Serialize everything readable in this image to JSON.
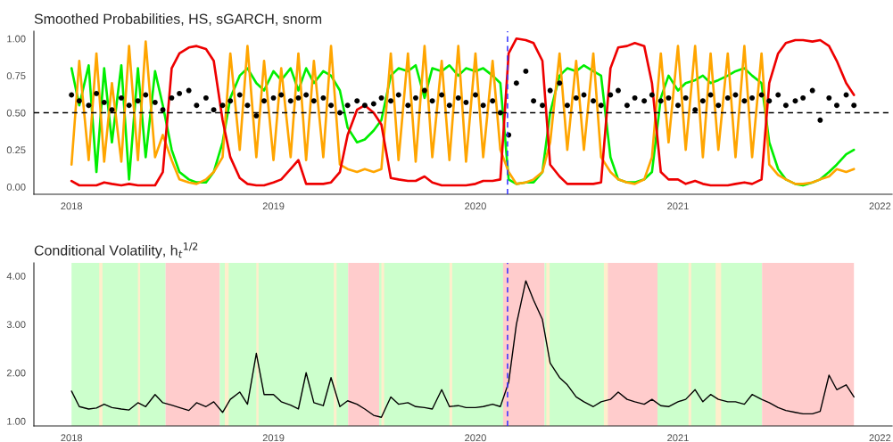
{
  "chart_data": [
    {
      "type": "line",
      "title": "Smoothed Probabilities, HS, sGARCH, snorm",
      "x": [
        "2018-01-01",
        "2018-01-15",
        "2018-02-01",
        "2018-02-15",
        "2018-03-01",
        "2018-03-15",
        "2018-04-01",
        "2018-04-15",
        "2018-05-01",
        "2018-05-15",
        "2018-06-01",
        "2018-06-15",
        "2018-07-01",
        "2018-07-15",
        "2018-08-01",
        "2018-08-15",
        "2018-09-01",
        "2018-09-15",
        "2018-10-01",
        "2018-10-15",
        "2018-11-01",
        "2018-11-15",
        "2018-12-01",
        "2018-12-15",
        "2019-01-01",
        "2019-01-15",
        "2019-02-01",
        "2019-02-15",
        "2019-03-01",
        "2019-03-15",
        "2019-04-01",
        "2019-04-15",
        "2019-05-01",
        "2019-05-15",
        "2019-06-01",
        "2019-06-15",
        "2019-07-01",
        "2019-07-15",
        "2019-08-01",
        "2019-08-15",
        "2019-09-01",
        "2019-09-15",
        "2019-10-01",
        "2019-10-15",
        "2019-11-01",
        "2019-11-15",
        "2019-12-01",
        "2019-12-15",
        "2020-01-01",
        "2020-01-15",
        "2020-02-01",
        "2020-02-15",
        "2020-03-01",
        "2020-03-15",
        "2020-04-01",
        "2020-04-15",
        "2020-05-01",
        "2020-05-15",
        "2020-06-01",
        "2020-06-15",
        "2020-07-01",
        "2020-07-15",
        "2020-08-01",
        "2020-08-15",
        "2020-09-01",
        "2020-09-15",
        "2020-10-01",
        "2020-10-15",
        "2020-11-01",
        "2020-11-15",
        "2020-12-01",
        "2020-12-15",
        "2021-01-01",
        "2021-01-15",
        "2021-02-01",
        "2021-02-15",
        "2021-03-01",
        "2021-03-15",
        "2021-04-01",
        "2021-04-15",
        "2021-05-01",
        "2021-05-15",
        "2021-06-01",
        "2021-06-15",
        "2021-07-01",
        "2021-07-15",
        "2021-08-01",
        "2021-08-15",
        "2021-09-01",
        "2021-09-15",
        "2021-10-01",
        "2021-10-15",
        "2021-11-01",
        "2021-11-15"
      ],
      "series": [
        {
          "color": "#00ee00",
          "values": [
            0.8,
            0.55,
            0.82,
            0.1,
            0.8,
            0.3,
            0.82,
            0.05,
            0.8,
            0.2,
            0.78,
            0.55,
            0.25,
            0.1,
            0.05,
            0.03,
            0.03,
            0.1,
            0.3,
            0.6,
            0.75,
            0.8,
            0.7,
            0.65,
            0.78,
            0.72,
            0.8,
            0.65,
            0.8,
            0.7,
            0.78,
            0.75,
            0.65,
            0.4,
            0.3,
            0.32,
            0.38,
            0.45,
            0.75,
            0.8,
            0.78,
            0.82,
            0.6,
            0.8,
            0.78,
            0.82,
            0.75,
            0.8,
            0.78,
            0.8,
            0.75,
            0.7,
            0.05,
            0.02,
            0.03,
            0.03,
            0.1,
            0.5,
            0.75,
            0.8,
            0.78,
            0.82,
            0.78,
            0.75,
            0.2,
            0.05,
            0.03,
            0.03,
            0.05,
            0.1,
            0.6,
            0.75,
            0.65,
            0.7,
            0.72,
            0.75,
            0.7,
            0.72,
            0.75,
            0.78,
            0.8,
            0.75,
            0.7,
            0.3,
            0.12,
            0.05,
            0.02,
            0.01,
            0.03,
            0.05,
            0.1,
            0.15,
            0.22,
            0.25
          ]
        },
        {
          "color": "#ffa500",
          "values": [
            0.15,
            0.85,
            0.18,
            0.9,
            0.17,
            0.7,
            0.17,
            0.95,
            0.18,
            0.98,
            0.2,
            0.35,
            0.18,
            0.05,
            0.03,
            0.02,
            0.05,
            0.1,
            0.2,
            0.9,
            0.25,
            0.95,
            0.2,
            0.85,
            0.18,
            0.8,
            0.2,
            0.9,
            0.18,
            0.85,
            0.2,
            0.95,
            0.15,
            0.12,
            0.1,
            0.12,
            0.1,
            0.12,
            0.9,
            0.18,
            0.9,
            0.17,
            0.95,
            0.2,
            0.85,
            0.18,
            0.95,
            0.17,
            0.9,
            0.2,
            0.85,
            0.25,
            0.1,
            0.02,
            0.03,
            0.05,
            0.1,
            0.3,
            0.9,
            0.25,
            0.85,
            0.25,
            0.9,
            0.2,
            0.1,
            0.05,
            0.03,
            0.02,
            0.05,
            0.2,
            0.9,
            0.3,
            0.95,
            0.25,
            0.95,
            0.2,
            0.9,
            0.25,
            0.9,
            0.2,
            0.95,
            0.2,
            0.9,
            0.15,
            0.08,
            0.05,
            0.02,
            0.02,
            0.03,
            0.05,
            0.07,
            0.12,
            0.1,
            0.12
          ]
        },
        {
          "color": "#ee0000",
          "values": [
            0.04,
            0.01,
            0.01,
            0.01,
            0.03,
            0.02,
            0.01,
            0.02,
            0.01,
            0.01,
            0.01,
            0.1,
            0.8,
            0.9,
            0.94,
            0.95,
            0.93,
            0.85,
            0.45,
            0.2,
            0.06,
            0.02,
            0.01,
            0.01,
            0.03,
            0.05,
            0.12,
            0.18,
            0.02,
            0.02,
            0.02,
            0.03,
            0.1,
            0.35,
            0.52,
            0.55,
            0.5,
            0.42,
            0.06,
            0.05,
            0.04,
            0.04,
            0.07,
            0.03,
            0.01,
            0.01,
            0.01,
            0.01,
            0.02,
            0.04,
            0.04,
            0.05,
            0.9,
            1.0,
            0.99,
            0.97,
            0.85,
            0.15,
            0.07,
            0.02,
            0.02,
            0.02,
            0.02,
            0.03,
            0.8,
            0.94,
            0.95,
            0.97,
            0.95,
            0.7,
            0.1,
            0.05,
            0.05,
            0.02,
            0.04,
            0.02,
            0.01,
            0.01,
            0.01,
            0.02,
            0.03,
            0.02,
            0.05,
            0.7,
            0.9,
            0.97,
            0.99,
            0.99,
            0.98,
            0.99,
            0.95,
            0.85,
            0.7,
            0.62
          ]
        },
        {
          "type": "scatter",
          "marker": "circle",
          "color": "#000000",
          "values": [
            0.62,
            0.58,
            0.55,
            0.63,
            0.57,
            0.52,
            0.6,
            0.55,
            0.58,
            0.62,
            0.57,
            0.52,
            0.6,
            0.63,
            0.65,
            0.55,
            0.6,
            0.52,
            0.55,
            0.58,
            0.62,
            0.55,
            0.48,
            0.58,
            0.6,
            0.62,
            0.58,
            0.6,
            0.62,
            0.58,
            0.6,
            0.55,
            0.5,
            0.55,
            0.58,
            0.55,
            0.56,
            0.6,
            0.58,
            0.62,
            0.55,
            0.6,
            0.65,
            0.58,
            0.62,
            0.55,
            0.6,
            0.57,
            0.62,
            0.55,
            0.58,
            0.5,
            0.35,
            0.7,
            0.78,
            0.58,
            0.55,
            0.65,
            0.7,
            0.55,
            0.6,
            0.62,
            0.58,
            0.55,
            0.62,
            0.65,
            0.55,
            0.6,
            0.58,
            0.62,
            0.58,
            0.6,
            0.55,
            0.6,
            0.52,
            0.58,
            0.62,
            0.55,
            0.6,
            0.62,
            0.58,
            0.6,
            0.62,
            0.58,
            0.62,
            0.55,
            0.58,
            0.6,
            0.65,
            0.45,
            0.6,
            0.55,
            0.62,
            0.55
          ]
        }
      ],
      "xlim": [
        "2017-10-25",
        "2022-01-23"
      ],
      "ylim": [
        -0.05,
        1.05
      ],
      "xticks": [
        {
          "value": "2018-01-01",
          "label": "2018"
        },
        {
          "value": "2019-01-01",
          "label": "2019"
        },
        {
          "value": "2020-01-01",
          "label": "2020"
        },
        {
          "value": "2021-01-01",
          "label": "2021"
        },
        {
          "value": "2022-01-01",
          "label": "2022"
        }
      ],
      "yticks": [
        {
          "value": 0,
          "label": "0.00"
        },
        {
          "value": 0.25,
          "label": "0.25"
        },
        {
          "value": 0.5,
          "label": "0.50"
        },
        {
          "value": 0.75,
          "label": "0.75"
        },
        {
          "value": 1,
          "label": "1.00"
        }
      ],
      "ref_lines": [
        {
          "axis": "y",
          "value": 0.5,
          "color": "#000000",
          "line_style": "dashed"
        },
        {
          "axis": "x",
          "value": "2020-02-28",
          "color": "#3333ff",
          "line_style": "dashed"
        }
      ],
      "line_style": "solid"
    },
    {
      "type": "line",
      "title": "Conditional Volatility, h$_{t}$$^{1/2}$",
      "x": [
        "2018-01-01",
        "2018-01-15",
        "2018-02-01",
        "2018-02-15",
        "2018-03-01",
        "2018-03-15",
        "2018-04-01",
        "2018-04-15",
        "2018-05-01",
        "2018-05-15",
        "2018-06-01",
        "2018-06-15",
        "2018-07-01",
        "2018-07-15",
        "2018-08-01",
        "2018-08-15",
        "2018-09-01",
        "2018-09-15",
        "2018-10-01",
        "2018-10-15",
        "2018-11-01",
        "2018-11-15",
        "2018-12-01",
        "2018-12-15",
        "2019-01-01",
        "2019-01-15",
        "2019-02-01",
        "2019-02-15",
        "2019-03-01",
        "2019-03-15",
        "2019-04-01",
        "2019-04-15",
        "2019-05-01",
        "2019-05-15",
        "2019-06-01",
        "2019-06-15",
        "2019-07-01",
        "2019-07-15",
        "2019-08-01",
        "2019-08-15",
        "2019-09-01",
        "2019-09-15",
        "2019-10-01",
        "2019-10-15",
        "2019-11-01",
        "2019-11-15",
        "2019-12-01",
        "2019-12-15",
        "2020-01-01",
        "2020-01-15",
        "2020-02-01",
        "2020-02-15",
        "2020-03-01",
        "2020-03-15",
        "2020-04-01",
        "2020-04-15",
        "2020-05-01",
        "2020-05-15",
        "2020-06-01",
        "2020-06-15",
        "2020-07-01",
        "2020-07-15",
        "2020-08-01",
        "2020-08-15",
        "2020-09-01",
        "2020-09-15",
        "2020-10-01",
        "2020-10-15",
        "2020-11-01",
        "2020-11-15",
        "2020-12-01",
        "2020-12-15",
        "2021-01-01",
        "2021-01-15",
        "2021-02-01",
        "2021-02-15",
        "2021-03-01",
        "2021-03-15",
        "2021-04-01",
        "2021-04-15",
        "2021-05-01",
        "2021-05-15",
        "2021-06-01",
        "2021-06-15",
        "2021-07-01",
        "2021-07-15",
        "2021-08-01",
        "2021-08-15",
        "2021-09-01",
        "2021-09-15",
        "2021-10-01",
        "2021-10-15",
        "2021-11-01",
        "2021-11-15"
      ],
      "series": [
        {
          "color": "#000000",
          "values": [
            1.62,
            1.3,
            1.25,
            1.27,
            1.35,
            1.28,
            1.25,
            1.23,
            1.38,
            1.3,
            1.55,
            1.38,
            1.33,
            1.28,
            1.22,
            1.38,
            1.3,
            1.4,
            1.18,
            1.45,
            1.6,
            1.35,
            2.4,
            1.55,
            1.55,
            1.4,
            1.33,
            1.25,
            2.0,
            1.38,
            1.32,
            1.9,
            1.3,
            1.42,
            1.35,
            1.25,
            1.12,
            1.08,
            1.5,
            1.35,
            1.38,
            1.3,
            1.28,
            1.25,
            1.65,
            1.3,
            1.32,
            1.28,
            1.28,
            1.3,
            1.35,
            1.3,
            1.8,
            3.0,
            3.9,
            3.5,
            3.1,
            2.2,
            1.9,
            1.75,
            1.5,
            1.4,
            1.3,
            1.4,
            1.45,
            1.6,
            1.45,
            1.4,
            1.35,
            1.45,
            1.32,
            1.3,
            1.4,
            1.45,
            1.65,
            1.4,
            1.55,
            1.45,
            1.4,
            1.4,
            1.35,
            1.55,
            1.45,
            1.38,
            1.28,
            1.22,
            1.18,
            1.15,
            1.15,
            1.2,
            1.95,
            1.65,
            1.75,
            1.5
          ]
        }
      ],
      "xlim": [
        "2017-10-25",
        "2022-01-23"
      ],
      "ylim": [
        0.9,
        4.27
      ],
      "xticks": [
        {
          "value": "2018-01-01",
          "label": "2018"
        },
        {
          "value": "2019-01-01",
          "label": "2019"
        },
        {
          "value": "2020-01-01",
          "label": "2020"
        },
        {
          "value": "2021-01-01",
          "label": "2021"
        },
        {
          "value": "2022-01-01",
          "label": "2022"
        }
      ],
      "yticks": [
        {
          "value": 1,
          "label": "1.00"
        },
        {
          "value": 2,
          "label": "2.00"
        },
        {
          "value": 3,
          "label": "3.00"
        },
        {
          "value": 4,
          "label": "4.00"
        }
      ],
      "bands": [
        {
          "axis": "x",
          "from": "2018-01-01",
          "to": "2018-06-20",
          "color": "#ccffcc"
        },
        {
          "axis": "x",
          "from": "2018-06-20",
          "to": "2018-09-26",
          "color": "#ffcccc"
        },
        {
          "axis": "x",
          "from": "2018-09-26",
          "to": "2019-05-16",
          "color": "#ccffcc"
        },
        {
          "axis": "x",
          "from": "2019-05-16",
          "to": "2019-07-11",
          "color": "#ffcccc"
        },
        {
          "axis": "x",
          "from": "2019-07-11",
          "to": "2020-02-20",
          "color": "#ccffcc"
        },
        {
          "axis": "x",
          "from": "2020-02-20",
          "to": "2020-05-05",
          "color": "#ffcccc"
        },
        {
          "axis": "x",
          "from": "2020-05-05",
          "to": "2020-08-27",
          "color": "#ccffcc"
        },
        {
          "axis": "x",
          "from": "2020-08-27",
          "to": "2020-11-25",
          "color": "#ffcccc"
        },
        {
          "axis": "x",
          "from": "2020-11-25",
          "to": "2021-06-02",
          "color": "#ccffcc"
        },
        {
          "axis": "x",
          "from": "2021-06-02",
          "to": "2021-11-15",
          "color": "#ffcccc"
        },
        {
          "axis": "x",
          "from": "2018-02-20",
          "to": "2018-02-26",
          "color": "#ffeecc"
        },
        {
          "axis": "x",
          "from": "2018-05-01",
          "to": "2018-05-05",
          "color": "#ffeecc"
        },
        {
          "axis": "x",
          "from": "2018-10-05",
          "to": "2018-10-12",
          "color": "#ffeecc"
        },
        {
          "axis": "x",
          "from": "2018-12-01",
          "to": "2018-12-05",
          "color": "#ffeecc"
        },
        {
          "axis": "x",
          "from": "2019-04-20",
          "to": "2019-04-25",
          "color": "#ffeecc"
        },
        {
          "axis": "x",
          "from": "2019-07-15",
          "to": "2019-07-20",
          "color": "#ffeecc"
        },
        {
          "axis": "x",
          "from": "2019-11-15",
          "to": "2019-11-20",
          "color": "#ffeecc"
        },
        {
          "axis": "x",
          "from": "2020-05-08",
          "to": "2020-05-14",
          "color": "#ffeecc"
        },
        {
          "axis": "x",
          "from": "2020-08-20",
          "to": "2020-08-27",
          "color": "#ffeecc"
        },
        {
          "axis": "x",
          "from": "2021-01-20",
          "to": "2021-01-25",
          "color": "#ffeecc"
        },
        {
          "axis": "x",
          "from": "2021-03-10",
          "to": "2021-03-20",
          "color": "#ffeecc"
        }
      ],
      "ref_lines": [
        {
          "axis": "x",
          "value": "2020-02-28",
          "color": "#3333ff",
          "line_style": "dashed"
        }
      ],
      "line_style": "solid"
    }
  ]
}
